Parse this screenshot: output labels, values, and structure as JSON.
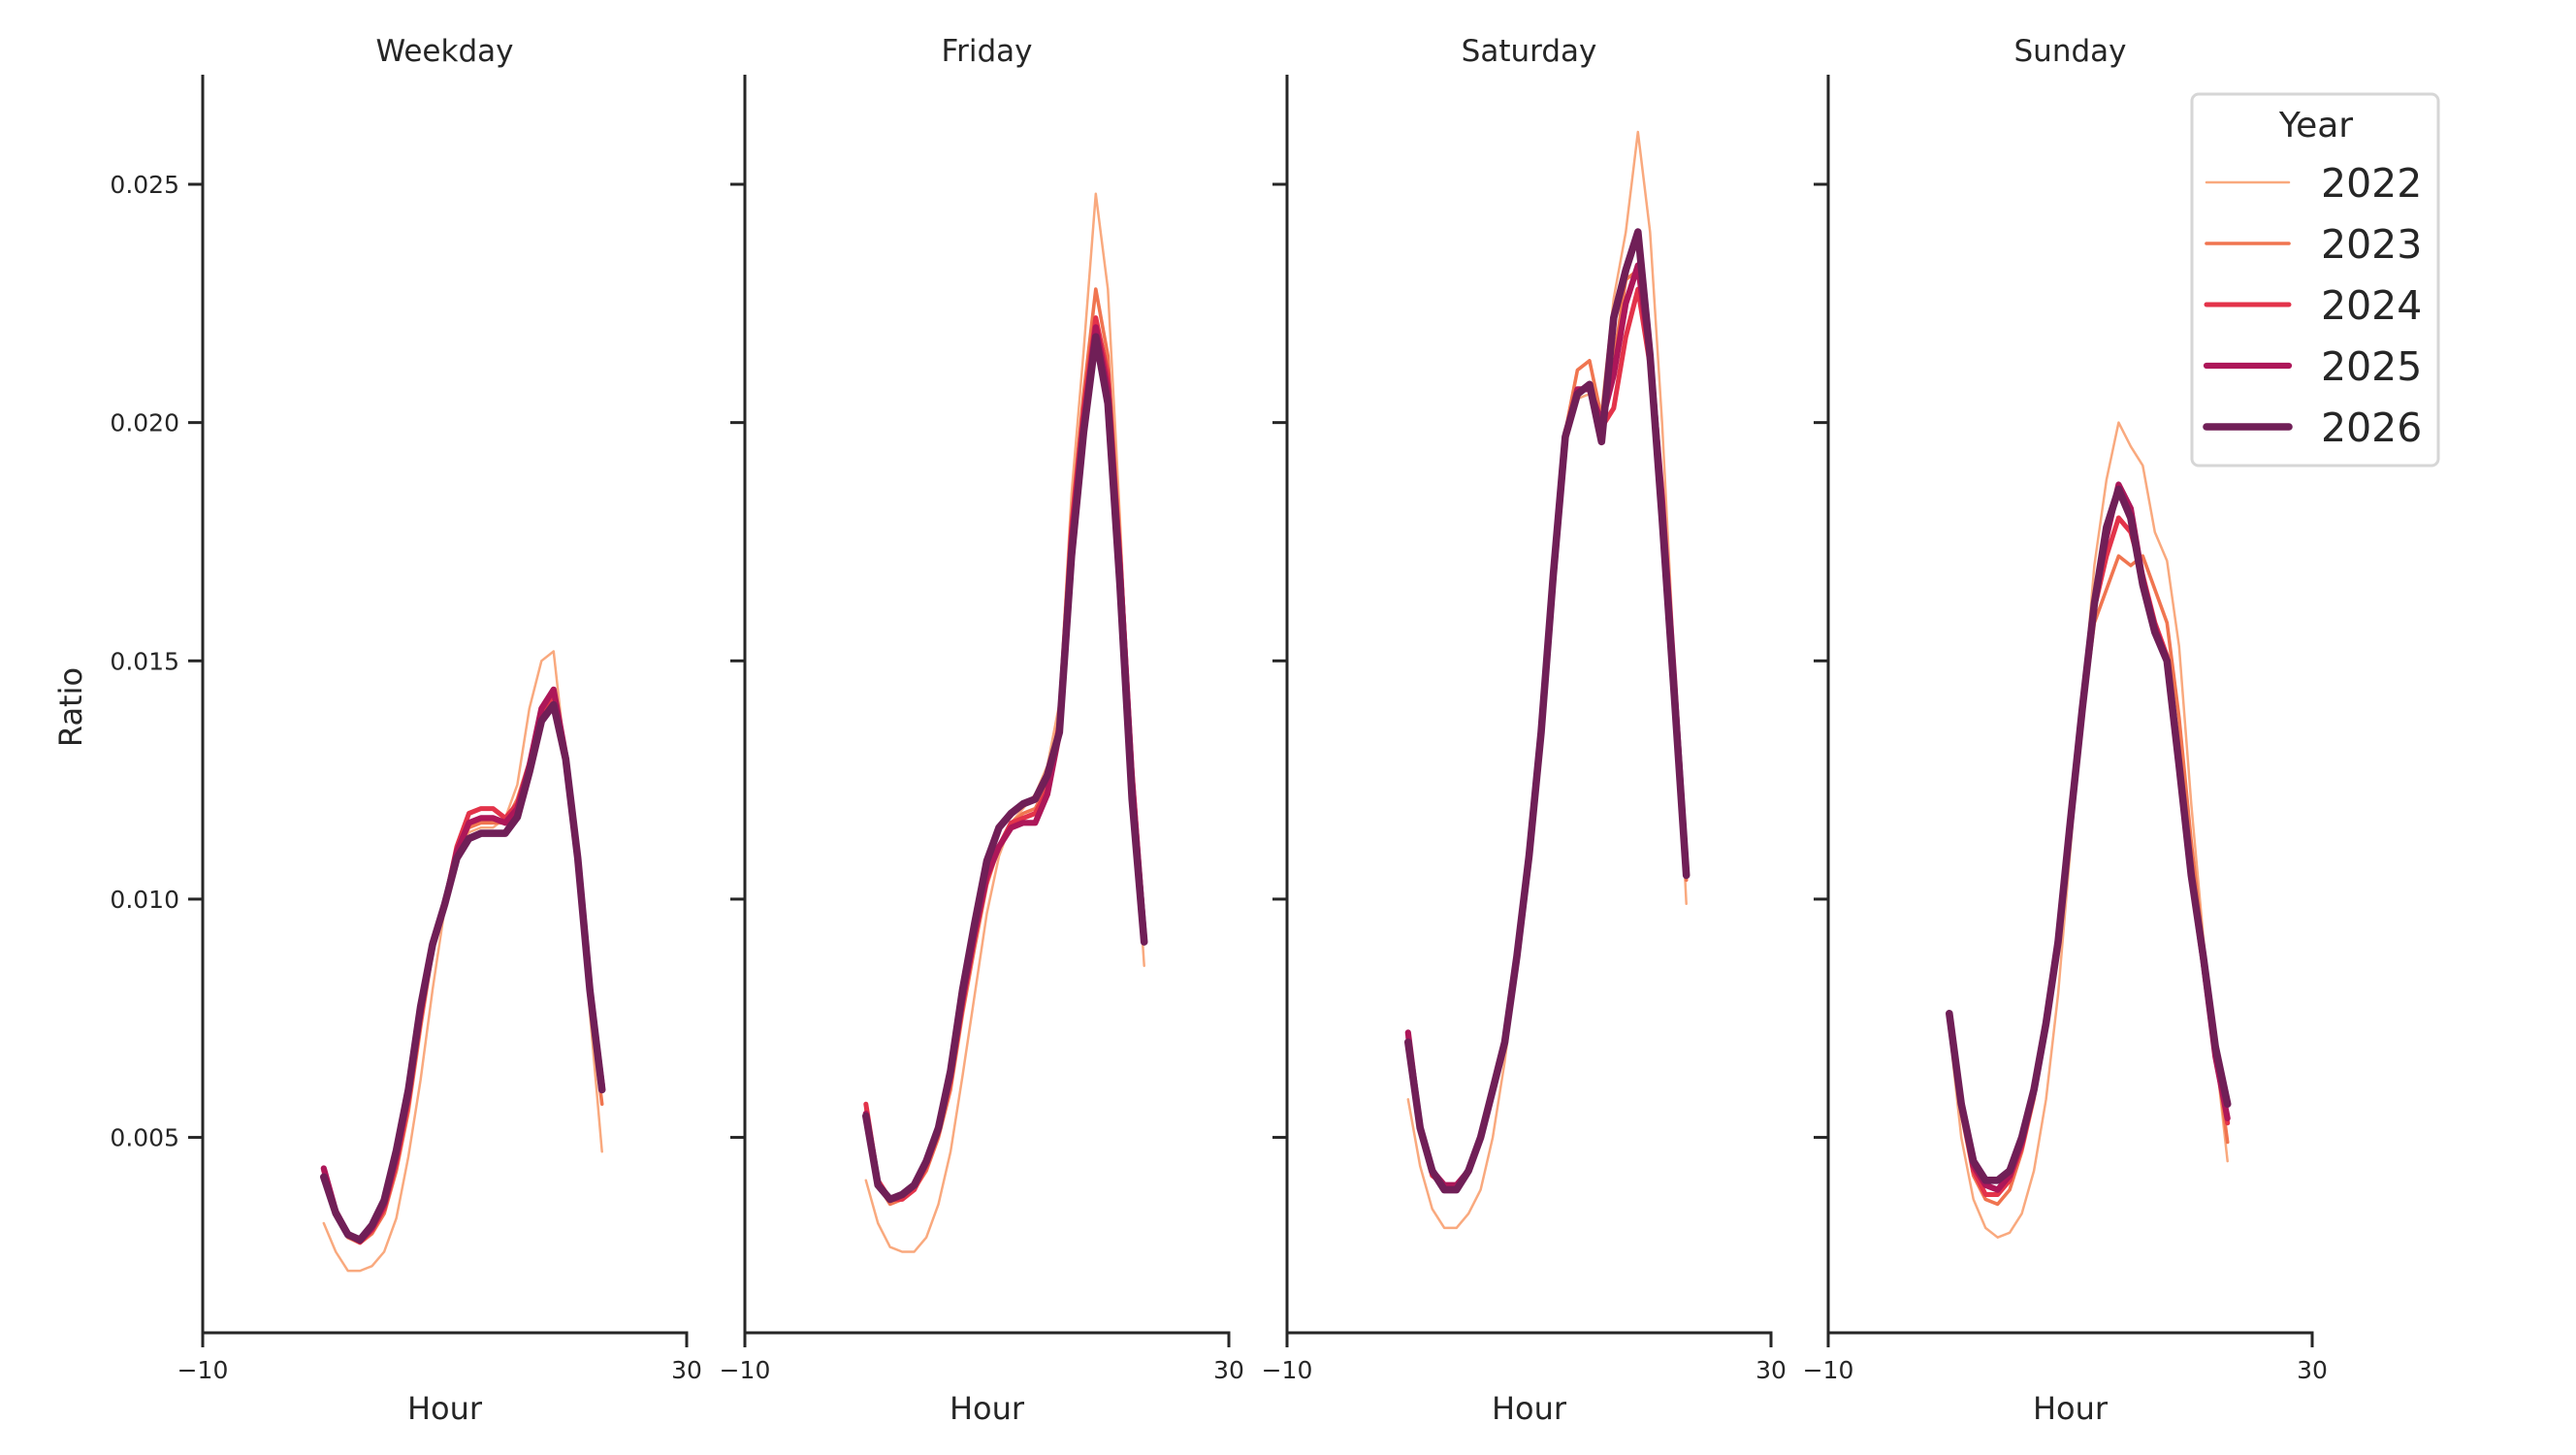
{
  "chart_data": {
    "type": "line",
    "xlabel": "Hour",
    "ylabel": "Ratio",
    "xlim": [
      -10,
      30
    ],
    "ylim": [
      0.0009,
      0.0273
    ],
    "xticks": [
      -10,
      30
    ],
    "xtick_labels": [
      "−10",
      "30"
    ],
    "yticks": [
      0.005,
      0.01,
      0.015,
      0.02,
      0.025
    ],
    "ytick_labels": [
      "0.005",
      "0.010",
      "0.015",
      "0.020",
      "0.025"
    ],
    "grid": false,
    "legend": {
      "title": "Year",
      "position": "top-right",
      "entries": [
        "2022",
        "2023",
        "2024",
        "2025",
        "2026"
      ]
    },
    "series_colors": {
      "2022": "#f9a97e",
      "2023": "#f07550",
      "2024": "#e3334a",
      "2025": "#ad1759",
      "2026": "#701f57"
    },
    "x": [
      0,
      1,
      2,
      3,
      4,
      5,
      6,
      7,
      8,
      9,
      10,
      11,
      12,
      13,
      14,
      15,
      16,
      17,
      18,
      19,
      20,
      21,
      22,
      23
    ],
    "panels": [
      {
        "title": "Weekday",
        "series": [
          {
            "name": "2022",
            "values": [
              0.0032,
              0.0026,
              0.0022,
              0.0022,
              0.0023,
              0.0026,
              0.0033,
              0.0046,
              0.0062,
              0.0081,
              0.0098,
              0.0108,
              0.0114,
              0.0115,
              0.0115,
              0.0117,
              0.0124,
              0.014,
              0.015,
              0.0152,
              0.0129,
              0.0105,
              0.0076,
              0.0047
            ]
          },
          {
            "name": "2023",
            "values": [
              0.0042,
              0.00335,
              0.0029,
              0.00278,
              0.00298,
              0.0034,
              0.0043,
              0.00555,
              0.0073,
              0.0089,
              0.0099,
              0.011,
              0.0115,
              0.0116,
              0.0116,
              0.0116,
              0.0121,
              0.0129,
              0.0138,
              0.0142,
              0.0131,
              0.0108,
              0.0078,
              0.0057
            ]
          },
          {
            "name": "2024",
            "values": [
              0.0043,
              0.00342,
              0.00295,
              0.0028,
              0.00305,
              0.0035,
              0.00445,
              0.00575,
              0.0075,
              0.009,
              0.0099,
              0.0111,
              0.0118,
              0.0119,
              0.0119,
              0.0117,
              0.012,
              0.0128,
              0.0139,
              0.0143,
              0.013,
              0.0109,
              0.008,
              0.006
            ]
          },
          {
            "name": "2025",
            "values": [
              0.00435,
              0.00345,
              0.00298,
              0.00283,
              0.0031,
              0.0036,
              0.0046,
              0.0059,
              0.00765,
              0.00905,
              0.0099,
              0.011,
              0.0116,
              0.0117,
              0.0117,
              0.0116,
              0.0119,
              0.0128,
              0.014,
              0.0144,
              0.013,
              0.0109,
              0.0081,
              0.0061
            ]
          },
          {
            "name": "2026",
            "values": [
              0.00417,
              0.00341,
              0.00296,
              0.00285,
              0.00316,
              0.00368,
              0.00472,
              0.006,
              0.00774,
              0.00905,
              0.00989,
              0.01086,
              0.01127,
              0.01138,
              0.01138,
              0.01138,
              0.01172,
              0.01266,
              0.01374,
              0.01408,
              0.01294,
              0.01086,
              0.00809,
              0.006
            ]
          }
        ]
      },
      {
        "title": "Friday",
        "series": [
          {
            "name": "2022",
            "values": [
              0.0041,
              0.0032,
              0.0027,
              0.0026,
              0.0026,
              0.0029,
              0.0036,
              0.0047,
              0.0063,
              0.008,
              0.0097,
              0.0109,
              0.0116,
              0.0119,
              0.0122,
              0.0128,
              0.0141,
              0.0185,
              0.0215,
              0.0248,
              0.0228,
              0.018,
              0.0125,
              0.0086
            ]
          },
          {
            "name": "2023",
            "values": [
              0.0056,
              0.004,
              0.0036,
              0.0037,
              0.0039,
              0.0043,
              0.005,
              0.006,
              0.0076,
              0.009,
              0.0103,
              0.0111,
              0.0116,
              0.0118,
              0.0119,
              0.0124,
              0.0138,
              0.018,
              0.0206,
              0.0228,
              0.0214,
              0.0175,
              0.0128,
              0.0093
            ]
          },
          {
            "name": "2024",
            "values": [
              0.0057,
              0.0041,
              0.0037,
              0.0037,
              0.0039,
              0.0044,
              0.0051,
              0.0062,
              0.0078,
              0.0092,
              0.0104,
              0.0111,
              0.0116,
              0.0117,
              0.0118,
              0.0123,
              0.0137,
              0.0178,
              0.0203,
              0.0222,
              0.021,
              0.0172,
              0.0127,
              0.0093
            ]
          },
          {
            "name": "2025",
            "values": [
              0.0055,
              0.004,
              0.0037,
              0.0038,
              0.004,
              0.0045,
              0.0052,
              0.0063,
              0.0079,
              0.0093,
              0.0105,
              0.0111,
              0.0115,
              0.0116,
              0.0116,
              0.0122,
              0.0135,
              0.0175,
              0.02,
              0.022,
              0.0207,
              0.017,
              0.0125,
              0.0092
            ]
          },
          {
            "name": "2026",
            "values": [
              0.00545,
              0.004,
              0.0037,
              0.0038,
              0.004,
              0.0045,
              0.0052,
              0.0064,
              0.0081,
              0.0095,
              0.0108,
              0.0115,
              0.0118,
              0.012,
              0.0121,
              0.0126,
              0.0135,
              0.0172,
              0.0198,
              0.0218,
              0.0204,
              0.0166,
              0.0121,
              0.0091
            ]
          }
        ]
      },
      {
        "title": "Saturday",
        "series": [
          {
            "name": "2022",
            "values": [
              0.0058,
              0.0044,
              0.0035,
              0.0031,
              0.0031,
              0.0034,
              0.0039,
              0.005,
              0.0066,
              0.0086,
              0.0108,
              0.0135,
              0.0168,
              0.0197,
              0.0205,
              0.0206,
              0.0203,
              0.0226,
              0.024,
              0.0261,
              0.024,
              0.02,
              0.015,
              0.0099
            ]
          },
          {
            "name": "2023",
            "values": [
              0.0069,
              0.0051,
              0.0042,
              0.004,
              0.004,
              0.0043,
              0.005,
              0.006,
              0.007,
              0.0088,
              0.0109,
              0.0135,
              0.0168,
              0.0198,
              0.0211,
              0.0213,
              0.0201,
              0.0213,
              0.023,
              0.0232,
              0.0212,
              0.0182,
              0.0145,
              0.0104
            ]
          },
          {
            "name": "2024",
            "values": [
              0.0071,
              0.0052,
              0.0042,
              0.004,
              0.004,
              0.0043,
              0.005,
              0.006,
              0.007,
              0.0088,
              0.0109,
              0.0135,
              0.0168,
              0.0198,
              0.0207,
              0.0207,
              0.0199,
              0.0203,
              0.0218,
              0.0228,
              0.0212,
              0.0183,
              0.0146,
              0.0105
            ]
          },
          {
            "name": "2025",
            "values": [
              0.0072,
              0.0052,
              0.0043,
              0.004,
              0.004,
              0.0043,
              0.005,
              0.006,
              0.007,
              0.0088,
              0.0109,
              0.0135,
              0.0168,
              0.0197,
              0.0207,
              0.0207,
              0.02,
              0.021,
              0.0225,
              0.0233,
              0.0214,
              0.0184,
              0.0146,
              0.0105
            ]
          },
          {
            "name": "2026",
            "values": [
              0.007,
              0.0052,
              0.0043,
              0.0039,
              0.0039,
              0.0043,
              0.005,
              0.006,
              0.007,
              0.0088,
              0.0109,
              0.0135,
              0.0168,
              0.0197,
              0.0206,
              0.0208,
              0.0196,
              0.0222,
              0.0232,
              0.024,
              0.0214,
              0.018,
              0.0143,
              0.0105
            ]
          }
        ]
      },
      {
        "title": "Sunday",
        "series": [
          {
            "name": "2022",
            "values": [
              0.0073,
              0.005,
              0.0037,
              0.0031,
              0.0029,
              0.003,
              0.0034,
              0.0043,
              0.0058,
              0.008,
              0.011,
              0.014,
              0.017,
              0.0188,
              0.02,
              0.0195,
              0.0191,
              0.0177,
              0.0171,
              0.0153,
              0.012,
              0.0092,
              0.0068,
              0.0045
            ]
          },
          {
            "name": "2023",
            "values": [
              0.0075,
              0.0055,
              0.0042,
              0.0037,
              0.0036,
              0.0039,
              0.0047,
              0.0058,
              0.0073,
              0.009,
              0.0115,
              0.0138,
              0.0158,
              0.0165,
              0.0172,
              0.017,
              0.0172,
              0.0165,
              0.0158,
              0.0138,
              0.0112,
              0.009,
              0.0068,
              0.0049
            ]
          },
          {
            "name": "2024",
            "values": [
              0.0076,
              0.0056,
              0.0043,
              0.0038,
              0.0038,
              0.0041,
              0.0048,
              0.0059,
              0.0074,
              0.0091,
              0.0116,
              0.014,
              0.0161,
              0.0172,
              0.018,
              0.0177,
              0.0168,
              0.0158,
              0.0151,
              0.013,
              0.0106,
              0.0088,
              0.0068,
              0.0053
            ]
          },
          {
            "name": "2025",
            "values": [
              0.0076,
              0.0057,
              0.0044,
              0.004,
              0.0039,
              0.0042,
              0.0049,
              0.006,
              0.0074,
              0.0091,
              0.0116,
              0.014,
              0.0162,
              0.0176,
              0.0187,
              0.0182,
              0.0167,
              0.0157,
              0.015,
              0.0128,
              0.0105,
              0.0087,
              0.0067,
              0.0054
            ]
          },
          {
            "name": "2026",
            "values": [
              0.0076,
              0.0057,
              0.0045,
              0.0041,
              0.0041,
              0.0043,
              0.005,
              0.006,
              0.0074,
              0.0091,
              0.0116,
              0.014,
              0.0162,
              0.0178,
              0.0186,
              0.018,
              0.0166,
              0.0156,
              0.015,
              0.0128,
              0.0105,
              0.0088,
              0.0069,
              0.0057
            ]
          }
        ]
      }
    ]
  }
}
